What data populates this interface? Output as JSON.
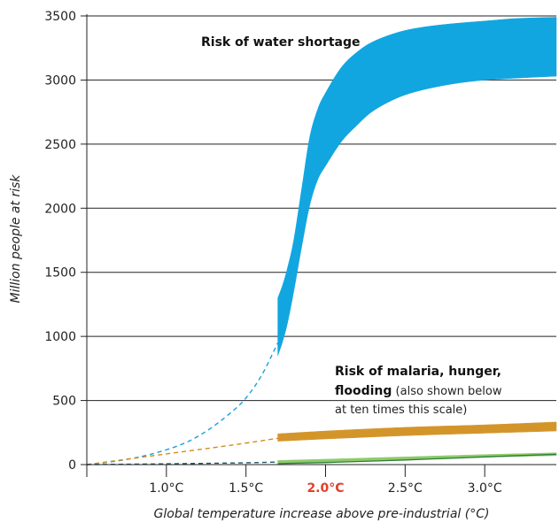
{
  "chart_data": {
    "type": "area",
    "title": "",
    "xlabel": "Global temperature increase above pre-industrial (°C)",
    "ylabel": "Million people at risk",
    "xlim": [
      0.5,
      3.45
    ],
    "ylim": [
      0,
      3500
    ],
    "y_ticks": [
      0,
      500,
      1000,
      1500,
      2000,
      2500,
      3000,
      3500
    ],
    "x_ticks": [
      {
        "value": 1.0,
        "label": "1.0°C",
        "highlight": false
      },
      {
        "value": 1.5,
        "label": "1.5°C",
        "highlight": false
      },
      {
        "value": 2.0,
        "label": "2.0°C",
        "highlight": true
      },
      {
        "value": 2.5,
        "label": "2.5°C",
        "highlight": false
      },
      {
        "value": 3.0,
        "label": "3.0°C",
        "highlight": false
      }
    ],
    "grid": {
      "y": true,
      "x": false
    },
    "colors": {
      "water": "#12a6e0",
      "water_dashed": "#1aa0d8",
      "malaria": "#d3952a",
      "malaria_dashed": "#d38a1a",
      "green_fill": "#8fca6a",
      "green_line": "#2e7d3a",
      "dark_dashed": "#1d5560",
      "highlight_tick": "#e2402b",
      "grid": "#222222"
    },
    "series": [
      {
        "key": "water",
        "kind": "band",
        "name": "Risk of water shortage",
        "x": [
          1.7,
          1.73,
          1.76,
          1.8,
          1.85,
          1.9,
          1.95,
          2.0,
          2.1,
          2.2,
          2.3,
          2.45,
          2.6,
          2.8,
          3.0,
          3.2,
          3.45
        ],
        "upper": [
          1300,
          1400,
          1530,
          1750,
          2150,
          2550,
          2770,
          2900,
          3100,
          3220,
          3300,
          3370,
          3410,
          3440,
          3460,
          3480,
          3490
        ],
        "lower": [
          850,
          960,
          1100,
          1350,
          1700,
          2020,
          2220,
          2330,
          2520,
          2650,
          2760,
          2860,
          2920,
          2970,
          3000,
          3015,
          3030
        ]
      },
      {
        "key": "water_dashed",
        "kind": "dashed",
        "name": "",
        "x": [
          0.5,
          0.7,
          0.9,
          1.1,
          1.25,
          1.4,
          1.5,
          1.6,
          1.7
        ],
        "y": [
          0,
          30,
          80,
          160,
          260,
          400,
          520,
          700,
          950
        ]
      },
      {
        "key": "malaria",
        "kind": "band",
        "name": "Risk of malaria, hunger, flooding",
        "x": [
          1.7,
          2.0,
          2.3,
          2.6,
          3.0,
          3.45
        ],
        "upper": [
          240,
          262,
          280,
          295,
          310,
          332
        ],
        "lower": [
          182,
          200,
          216,
          230,
          245,
          262
        ]
      },
      {
        "key": "malaria_dashed",
        "kind": "dashed",
        "name": "",
        "x": [
          0.5,
          0.8,
          1.1,
          1.4,
          1.7
        ],
        "y": [
          0,
          50,
          100,
          150,
          205
        ]
      },
      {
        "key": "green",
        "kind": "band",
        "name": "",
        "x": [
          1.7,
          2.0,
          2.5,
          3.0,
          3.45
        ],
        "upper": [
          32,
          42,
          60,
          78,
          92
        ],
        "lower": [
          14,
          20,
          40,
          58,
          70
        ]
      },
      {
        "key": "green_line",
        "kind": "line",
        "name": "",
        "x": [
          1.7,
          2.0,
          2.5,
          3.0,
          3.45
        ],
        "y": [
          8,
          16,
          36,
          60,
          80
        ]
      },
      {
        "key": "dark_dashed",
        "kind": "dashed",
        "name": "",
        "x": [
          0.5,
          1.0,
          1.5,
          1.7
        ],
        "y": [
          0,
          6,
          14,
          20
        ]
      }
    ],
    "annotations": {
      "water_label": "Risk of water shortage",
      "malaria_label_bold_1": "Risk of malaria, hunger,",
      "malaria_label_bold_2": "flooding",
      "malaria_label_normal_2": " (also shown below",
      "malaria_label_normal_3": "at ten times this scale)"
    }
  }
}
